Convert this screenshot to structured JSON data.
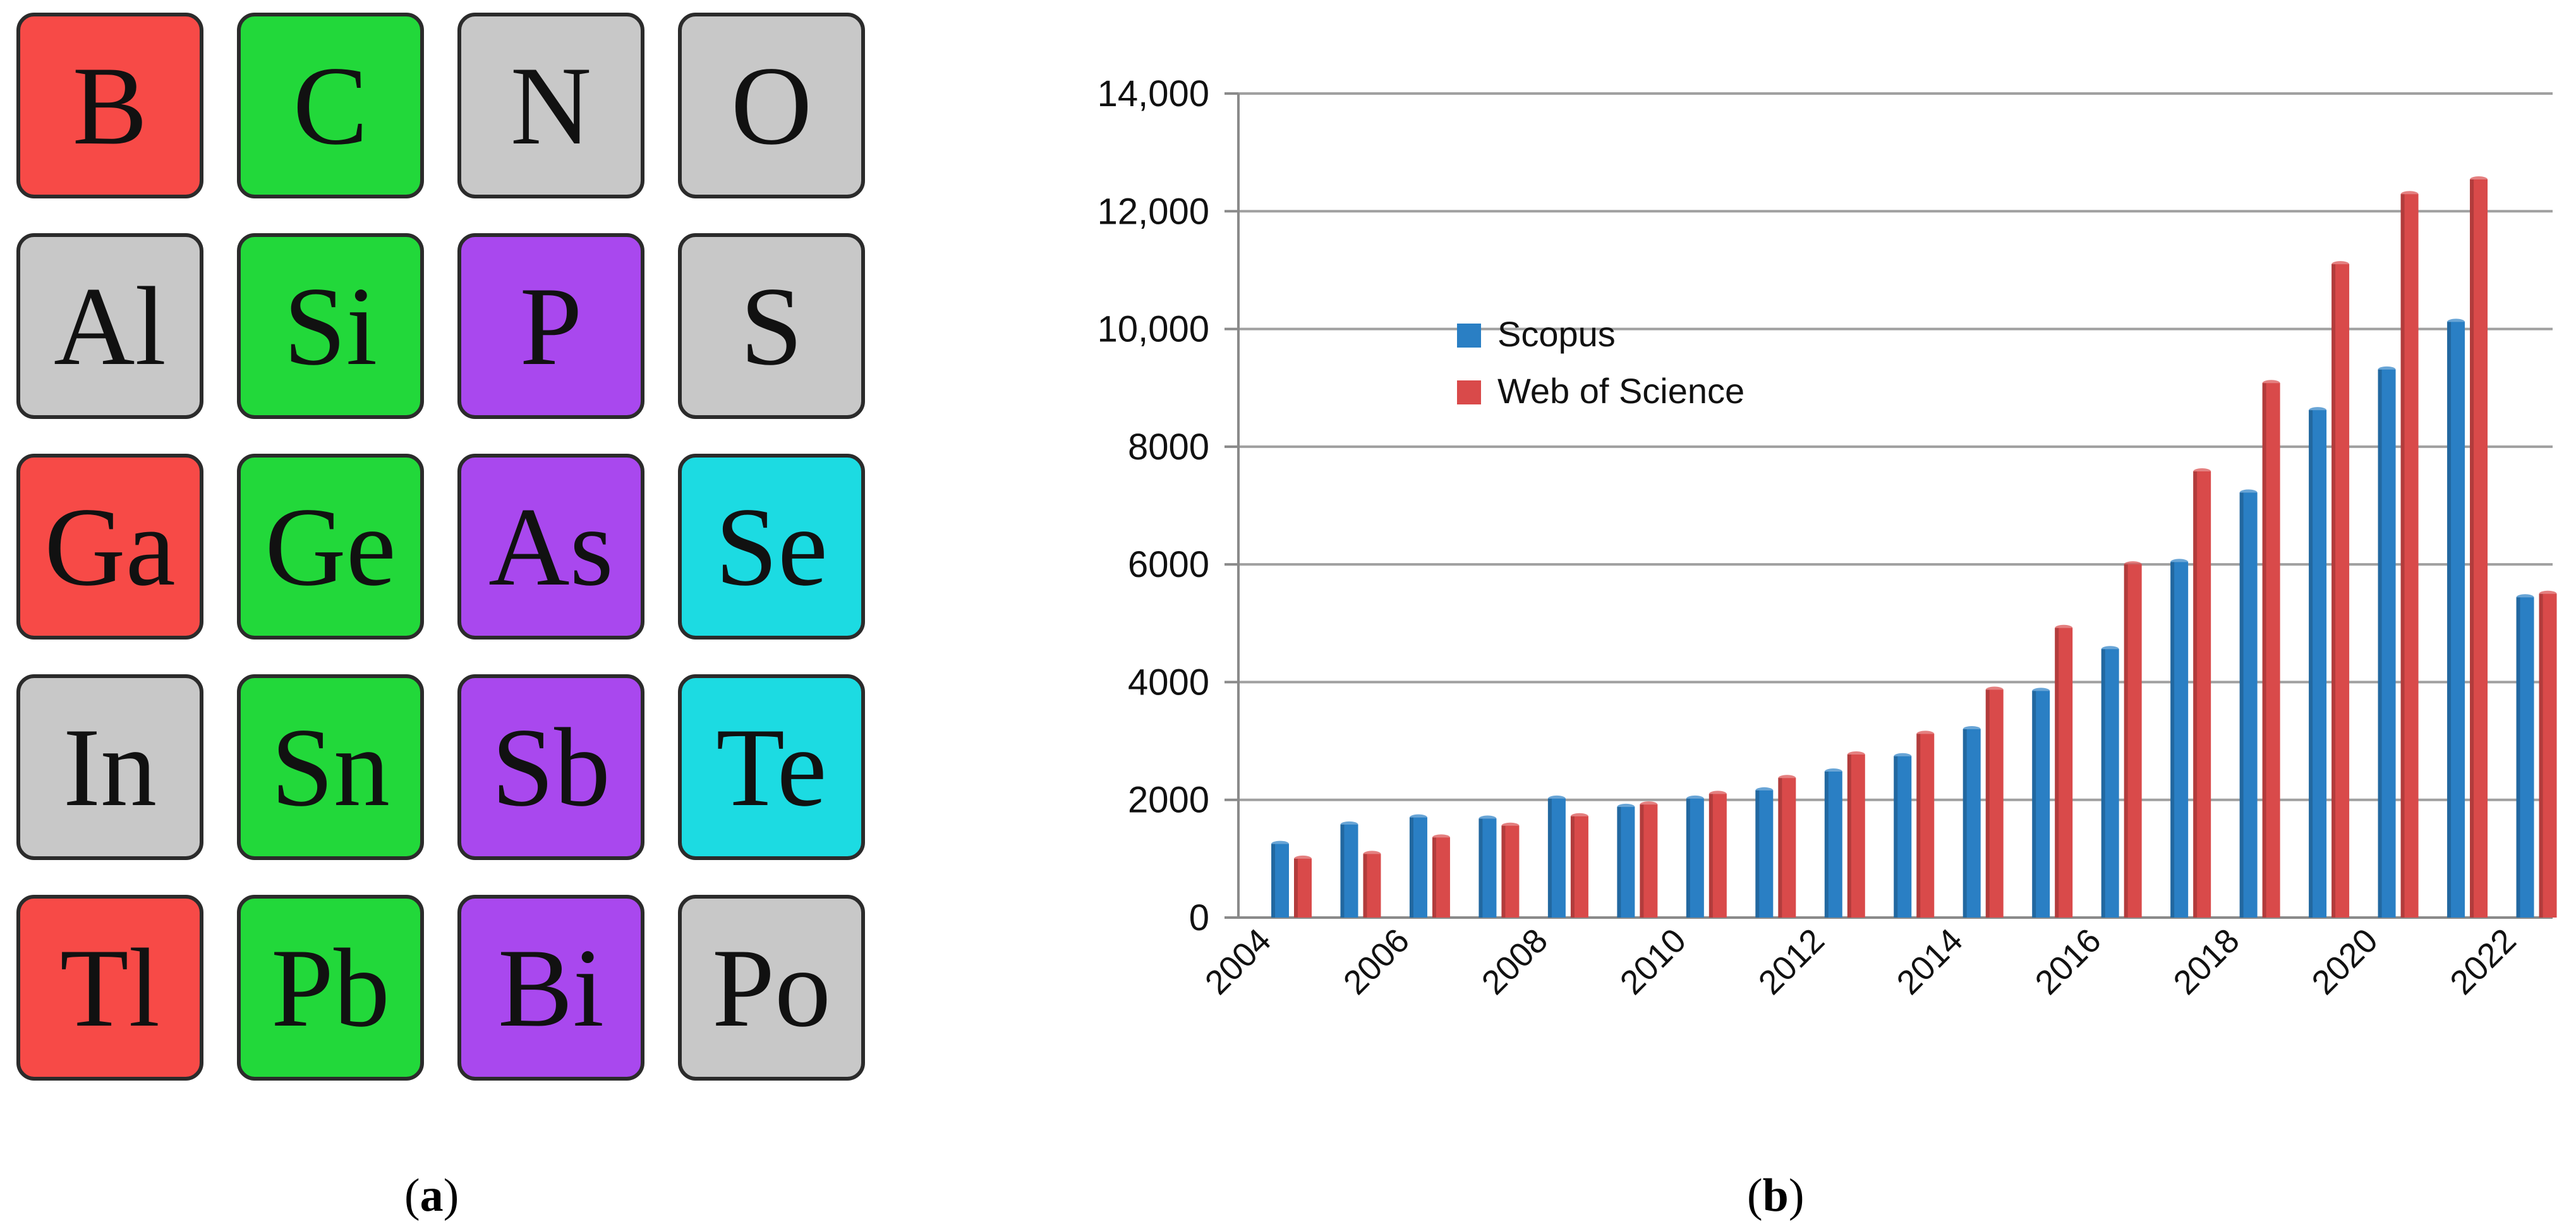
{
  "panel_a": {
    "caption": "a",
    "tiles": [
      [
        {
          "symbol": "B",
          "color": "#f74a47"
        },
        {
          "symbol": "C",
          "color": "#22d83a"
        },
        {
          "symbol": "N",
          "color": "#c8c8c8"
        },
        {
          "symbol": "O",
          "color": "#c8c8c8"
        }
      ],
      [
        {
          "symbol": "Al",
          "color": "#c8c8c8"
        },
        {
          "symbol": "Si",
          "color": "#22d83a"
        },
        {
          "symbol": "P",
          "color": "#a948ee"
        },
        {
          "symbol": "S",
          "color": "#c8c8c8"
        }
      ],
      [
        {
          "symbol": "Ga",
          "color": "#f74a47"
        },
        {
          "symbol": "Ge",
          "color": "#22d83a"
        },
        {
          "symbol": "As",
          "color": "#a948ee"
        },
        {
          "symbol": "Se",
          "color": "#1cdbe2"
        }
      ],
      [
        {
          "symbol": "In",
          "color": "#c8c8c8"
        },
        {
          "symbol": "Sn",
          "color": "#22d83a"
        },
        {
          "symbol": "Sb",
          "color": "#a948ee"
        },
        {
          "symbol": "Te",
          "color": "#1cdbe2"
        }
      ],
      [
        {
          "symbol": "Tl",
          "color": "#f74a47"
        },
        {
          "symbol": "Pb",
          "color": "#22d83a"
        },
        {
          "symbol": "Bi",
          "color": "#a948ee"
        },
        {
          "symbol": "Po",
          "color": "#c8c8c8"
        }
      ]
    ]
  },
  "panel_b": {
    "caption": "b"
  },
  "chart_data": {
    "type": "bar",
    "title": "",
    "xlabel": "",
    "ylabel": "",
    "ylim": [
      0,
      14000
    ],
    "yticks": [
      {
        "value": 0,
        "label": "0"
      },
      {
        "value": 2000,
        "label": "2000"
      },
      {
        "value": 4000,
        "label": "4000"
      },
      {
        "value": 6000,
        "label": "6000"
      },
      {
        "value": 8000,
        "label": "8000"
      },
      {
        "value": 10000,
        "label": "10,000"
      },
      {
        "value": 12000,
        "label": "12,000"
      },
      {
        "value": 14000,
        "label": "14,000"
      }
    ],
    "categories": [
      "2004",
      "2005",
      "2006",
      "2007",
      "2008",
      "2009",
      "2010",
      "2011",
      "2012",
      "2013",
      "2014",
      "2015",
      "2016",
      "2017",
      "2018",
      "2019",
      "2020",
      "2021",
      "2022"
    ],
    "xtick_labels": [
      "2004",
      "2006",
      "2008",
      "2010",
      "2012",
      "2014",
      "2016",
      "2018",
      "2020",
      "2022"
    ],
    "grid": true,
    "legend_position": "upper-left-center",
    "series": [
      {
        "name": "Scopus",
        "color": "#2a7fc4",
        "values": [
          1250,
          1580,
          1700,
          1680,
          2020,
          1880,
          2020,
          2160,
          2480,
          2740,
          3200,
          3850,
          4560,
          6040,
          7220,
          8620,
          9310,
          10120,
          5440
        ]
      },
      {
        "name": "Web of Science",
        "color": "#d94a4a",
        "values": [
          1000,
          1080,
          1360,
          1560,
          1720,
          1920,
          2100,
          2370,
          2770,
          3120,
          3870,
          4920,
          6000,
          7580,
          9080,
          11100,
          12290,
          12540,
          5500
        ]
      }
    ]
  }
}
